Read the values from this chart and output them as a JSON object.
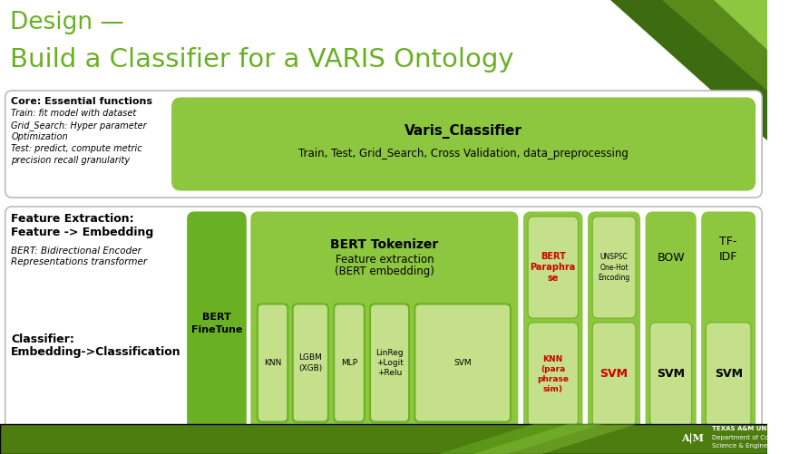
{
  "title_line1": "Design —",
  "title_line2": "Build a Classifier for a VARIS Ontology",
  "title_color": "#6ab023",
  "bg_color": "#ffffff",
  "green_dark": "#4d7c0f",
  "green_medium": "#8dc63f",
  "green_light": "#c5e08a",
  "green_box": "#7ab800",
  "green_darker": "#5a8a00",
  "green_finetune": "#6ab023",
  "core_text_bold": "Core: Essential functions",
  "core_text_italic1": "Train: fit model with dataset",
  "core_text_italic2": "Grid_Search: Hyper parameter",
  "core_text_italic2b": "Optimization",
  "core_text_italic3": "Test: predict, compute metric",
  "core_text_italic3b": "precision recall granularity",
  "varis_title": "Varis_Classifier",
  "varis_subtitle": "Train, Test, Grid_Search, Cross Validation, data_preprocessing",
  "bert_finetune": "BERT\nFineTune",
  "bert_tokenizer_title": "BERT Tokenizer",
  "bert_tokenizer_sub": "Feature extraction\n(BERT embedding)",
  "classifiers": [
    "KNN",
    "LGBM\n(XGB)",
    "MLP",
    "LinReg\n+Logit\n+Relu",
    "SVM"
  ],
  "bert_paraphrase": "BERT\nParaphra\nse",
  "knn_paraphrase": "KNN\n(para\nphrase\nsim)",
  "unspsc": "UNSPSC\nOne-Hot\nEncoding",
  "bow": "BOW",
  "tfidf": "TF-\nIDF",
  "svm_mid": "SVM",
  "svm_right": "SVM",
  "svm_tfidf": "SVM",
  "footer_bg": "#4d7c0f"
}
